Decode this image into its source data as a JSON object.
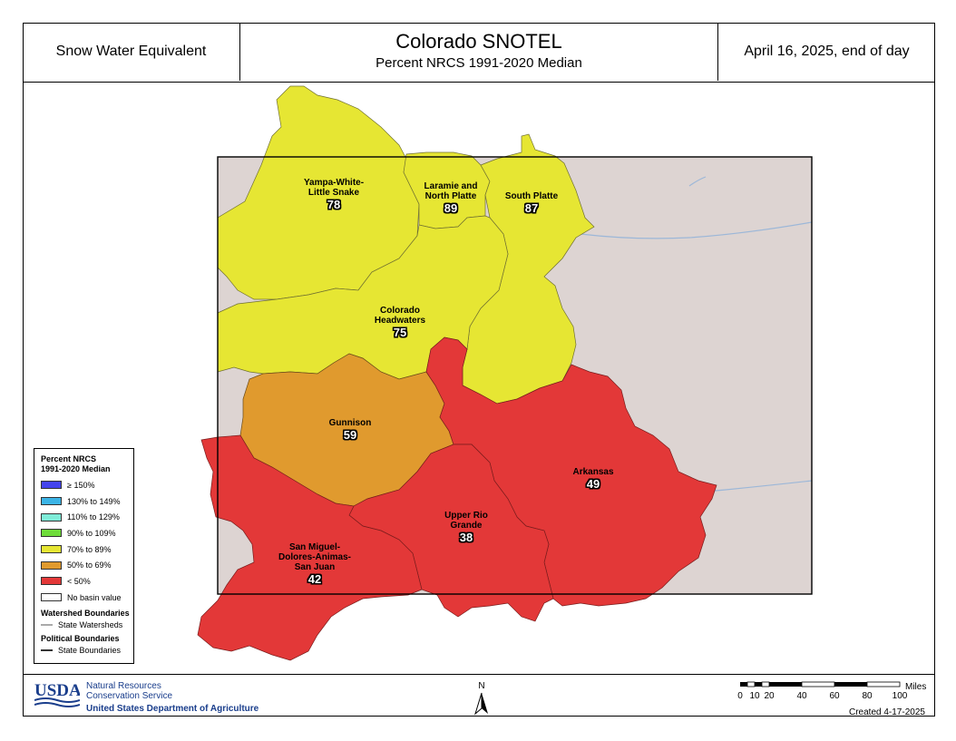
{
  "header": {
    "left": "Snow Water Equivalent",
    "title": "Colorado SNOTEL",
    "subtitle": "Percent NRCS 1991-2020 Median",
    "date": "April 16, 2025, end of day"
  },
  "colors": {
    "yellow": "#e6e633",
    "orange": "#e09a2e",
    "red": "#e33838",
    "terrain": "#ddd4d2",
    "stateline": "#000000"
  },
  "basins": [
    {
      "name": "Yampa-White-\nLittle Snake",
      "value": "78",
      "class": "70% to 89%"
    },
    {
      "name": "Laramie and\nNorth Platte",
      "value": "89",
      "class": "70% to 89%"
    },
    {
      "name": "South Platte",
      "value": "87",
      "class": "70% to 89%"
    },
    {
      "name": "Colorado\nHeadwaters",
      "value": "75",
      "class": "70% to 89%"
    },
    {
      "name": "Gunnison",
      "value": "59",
      "class": "50% to 69%"
    },
    {
      "name": "Arkansas",
      "value": "49",
      "class": "< 50%"
    },
    {
      "name": "Upper Rio\nGrande",
      "value": "38",
      "class": "< 50%"
    },
    {
      "name": "San Miguel-\nDolores-Animas-\nSan Juan",
      "value": "42",
      "class": "< 50%"
    }
  ],
  "legend": {
    "title_line1": "Percent NRCS",
    "title_line2": "1991-2020 Median",
    "classes": [
      {
        "label": "≥ 150%",
        "color": "#4444ee"
      },
      {
        "label": "130% to 149%",
        "color": "#3bb4e6"
      },
      {
        "label": "110% to 129%",
        "color": "#7eecd8"
      },
      {
        "label": "90% to 109%",
        "color": "#6edc3a"
      },
      {
        "label": "70% to 89%",
        "color": "#e6e633"
      },
      {
        "label": "50% to 69%",
        "color": "#e09a2e"
      },
      {
        "label": "< 50%",
        "color": "#e33838"
      },
      {
        "label": "No basin value",
        "color": "#ffffff"
      }
    ],
    "watershed_head": "Watershed Boundaries",
    "watershed_item": "State Watersheds",
    "political_head": "Political Boundaries",
    "political_item": "State Boundaries"
  },
  "footer": {
    "usda": "USDA",
    "agency_line1": "Natural Resources",
    "agency_line2": "Conservation Service",
    "department": "United States Department of Agriculture",
    "north": "N",
    "scale_unit": "Miles",
    "scale_ticks": [
      "0",
      "10",
      "20",
      "40",
      "60",
      "80",
      "100"
    ],
    "created": "Created 4-17-2025"
  }
}
